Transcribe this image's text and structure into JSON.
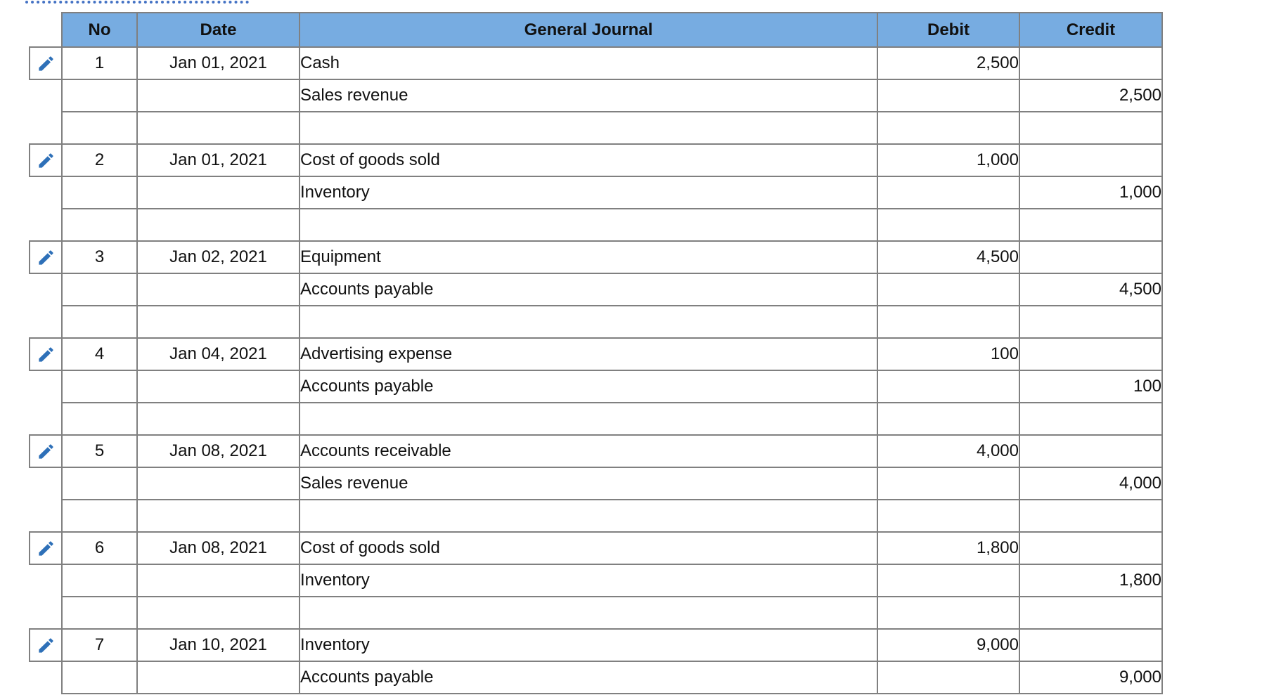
{
  "decor": {
    "dotted_divider_color": "#4472C4"
  },
  "icons": {
    "edit_pencil_color": "#2E70B8"
  },
  "table": {
    "header_bg": "#77ACE1",
    "border_color": "#808080",
    "headers": {
      "no": "No",
      "date": "Date",
      "journal": "General Journal",
      "debit": "Debit",
      "credit": "Credit"
    },
    "entries": [
      {
        "no": "1",
        "date": "Jan 01, 2021",
        "debit_account": "Cash",
        "debit_amount": "2,500",
        "credit_account": "Sales revenue",
        "credit_amount": "2,500"
      },
      {
        "no": "2",
        "date": "Jan 01, 2021",
        "debit_account": "Cost of goods sold",
        "debit_amount": "1,000",
        "credit_account": "Inventory",
        "credit_amount": "1,000"
      },
      {
        "no": "3",
        "date": "Jan 02, 2021",
        "debit_account": "Equipment",
        "debit_amount": "4,500",
        "credit_account": "Accounts payable",
        "credit_amount": "4,500"
      },
      {
        "no": "4",
        "date": "Jan 04, 2021",
        "debit_account": "Advertising expense",
        "debit_amount": "100",
        "credit_account": "Accounts payable",
        "credit_amount": "100"
      },
      {
        "no": "5",
        "date": "Jan 08, 2021",
        "debit_account": "Accounts receivable",
        "debit_amount": "4,000",
        "credit_account": "Sales revenue",
        "credit_amount": "4,000"
      },
      {
        "no": "6",
        "date": "Jan 08, 2021",
        "debit_account": "Cost of goods sold",
        "debit_amount": "1,800",
        "credit_account": "Inventory",
        "credit_amount": "1,800"
      },
      {
        "no": "7",
        "date": "Jan 10, 2021",
        "debit_account": "Inventory",
        "debit_amount": "9,000",
        "credit_account": "Accounts payable",
        "credit_amount": "9,000"
      }
    ]
  }
}
